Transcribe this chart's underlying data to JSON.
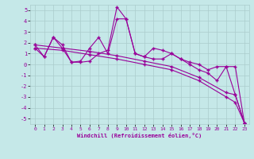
{
  "xlabel": "Windchill (Refroidissement éolien,°C)",
  "xlim": [
    -0.5,
    23.5
  ],
  "ylim": [
    -5.5,
    5.5
  ],
  "yticks": [
    -5,
    -4,
    -3,
    -2,
    -1,
    0,
    1,
    2,
    3,
    4,
    5
  ],
  "xticks": [
    0,
    1,
    2,
    3,
    4,
    5,
    6,
    7,
    8,
    9,
    10,
    11,
    12,
    13,
    14,
    15,
    16,
    17,
    18,
    19,
    20,
    21,
    22,
    23
  ],
  "bg_color": "#c5e8e8",
  "line_color": "#990099",
  "grid_color": "#aacccc",
  "series": [
    {
      "x": [
        0,
        1,
        2,
        3,
        4,
        5,
        6,
        7,
        8,
        9,
        10,
        11,
        12,
        13,
        14,
        15,
        16,
        17,
        18,
        19,
        20,
        21,
        22,
        23
      ],
      "y": [
        1.8,
        0.7,
        2.5,
        1.5,
        0.2,
        0.3,
        1.5,
        2.5,
        1.0,
        4.2,
        4.2,
        1.0,
        0.7,
        1.5,
        1.3,
        1.0,
        0.5,
        0.2,
        0.0,
        -0.5,
        -0.2,
        -0.2,
        -0.2,
        -5.4
      ],
      "marker": "+"
    },
    {
      "x": [
        0,
        1,
        2,
        3,
        4,
        5,
        6,
        7,
        8,
        9,
        10,
        11,
        12,
        13,
        14,
        15,
        16,
        17,
        18,
        19,
        20,
        21,
        22,
        23
      ],
      "y": [
        1.5,
        0.7,
        2.5,
        1.8,
        0.2,
        0.2,
        0.3,
        1.0,
        1.3,
        5.3,
        4.2,
        1.0,
        0.7,
        0.5,
        0.5,
        1.0,
        0.5,
        0.0,
        -0.5,
        -0.8,
        -1.5,
        -0.2,
        -2.8,
        -5.4
      ],
      "marker": "+"
    },
    {
      "x": [
        0,
        3,
        6,
        9,
        12,
        15,
        18,
        21,
        22,
        23
      ],
      "y": [
        1.8,
        1.5,
        1.2,
        0.8,
        0.3,
        -0.2,
        -1.2,
        -2.6,
        -2.8,
        -5.4
      ],
      "marker": "+"
    },
    {
      "x": [
        0,
        3,
        6,
        9,
        12,
        15,
        18,
        21,
        22,
        23
      ],
      "y": [
        1.5,
        1.3,
        0.9,
        0.5,
        0.0,
        -0.5,
        -1.5,
        -3.0,
        -3.5,
        -5.4
      ],
      "marker": "+"
    }
  ]
}
